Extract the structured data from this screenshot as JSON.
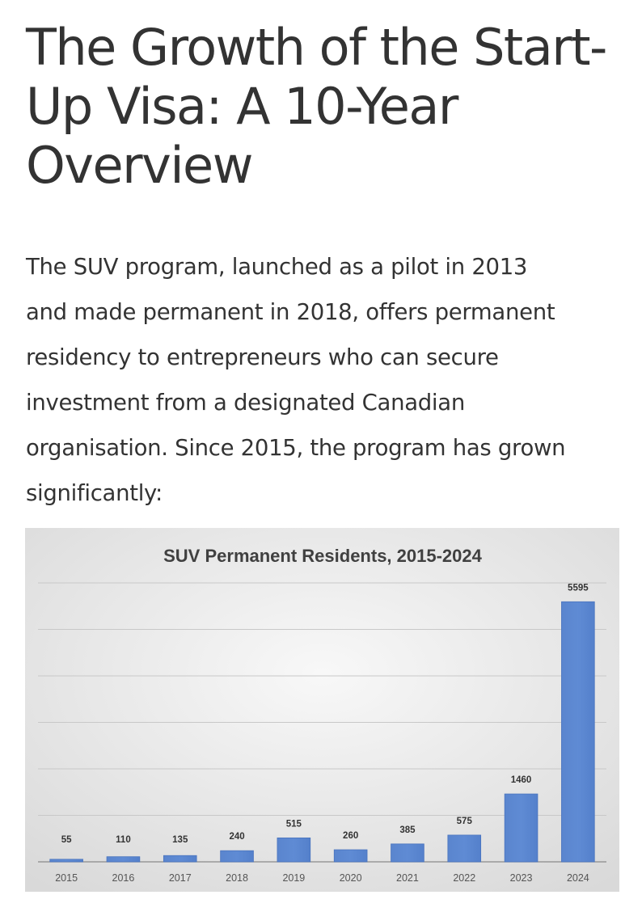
{
  "article": {
    "title": "The Growth of the Start-Up Visa: A 10-Year Overview",
    "title_lines": [
      "The Growth of the Start-",
      "Up Visa: A 10-Year",
      "Overview"
    ],
    "body": "The SUV program, launched as a pilot in 2013 and made permanent in 2018, offers permanent residency to entrepreneurs who can secure investment from a designated Canadian organisation. Since 2015, the program has grown significantly:",
    "body_lines": [
      "The SUV program, launched as a pilot in 2013",
      "and made permanent in 2018, offers permanent",
      "residency to entrepreneurs who can secure",
      "investment from a designated Canadian",
      "organisation. Since 2015, the program has grown",
      "significantly:"
    ]
  },
  "chart_data": {
    "type": "bar",
    "title": "SUV Permanent Residents, 2015-2024",
    "categories": [
      "2015",
      "2016",
      "2017",
      "2018",
      "2019",
      "2020",
      "2021",
      "2022",
      "2023",
      "2024"
    ],
    "values": [
      55,
      110,
      135,
      240,
      515,
      260,
      385,
      575,
      1460,
      5595
    ],
    "xlabel": "",
    "ylabel": "",
    "ylim": [
      0,
      6000
    ],
    "grid": true,
    "legend": "none",
    "bar_color": "#5b86cf",
    "bar_border_color": "#4a74be",
    "background_color": "#e6e6e6"
  }
}
